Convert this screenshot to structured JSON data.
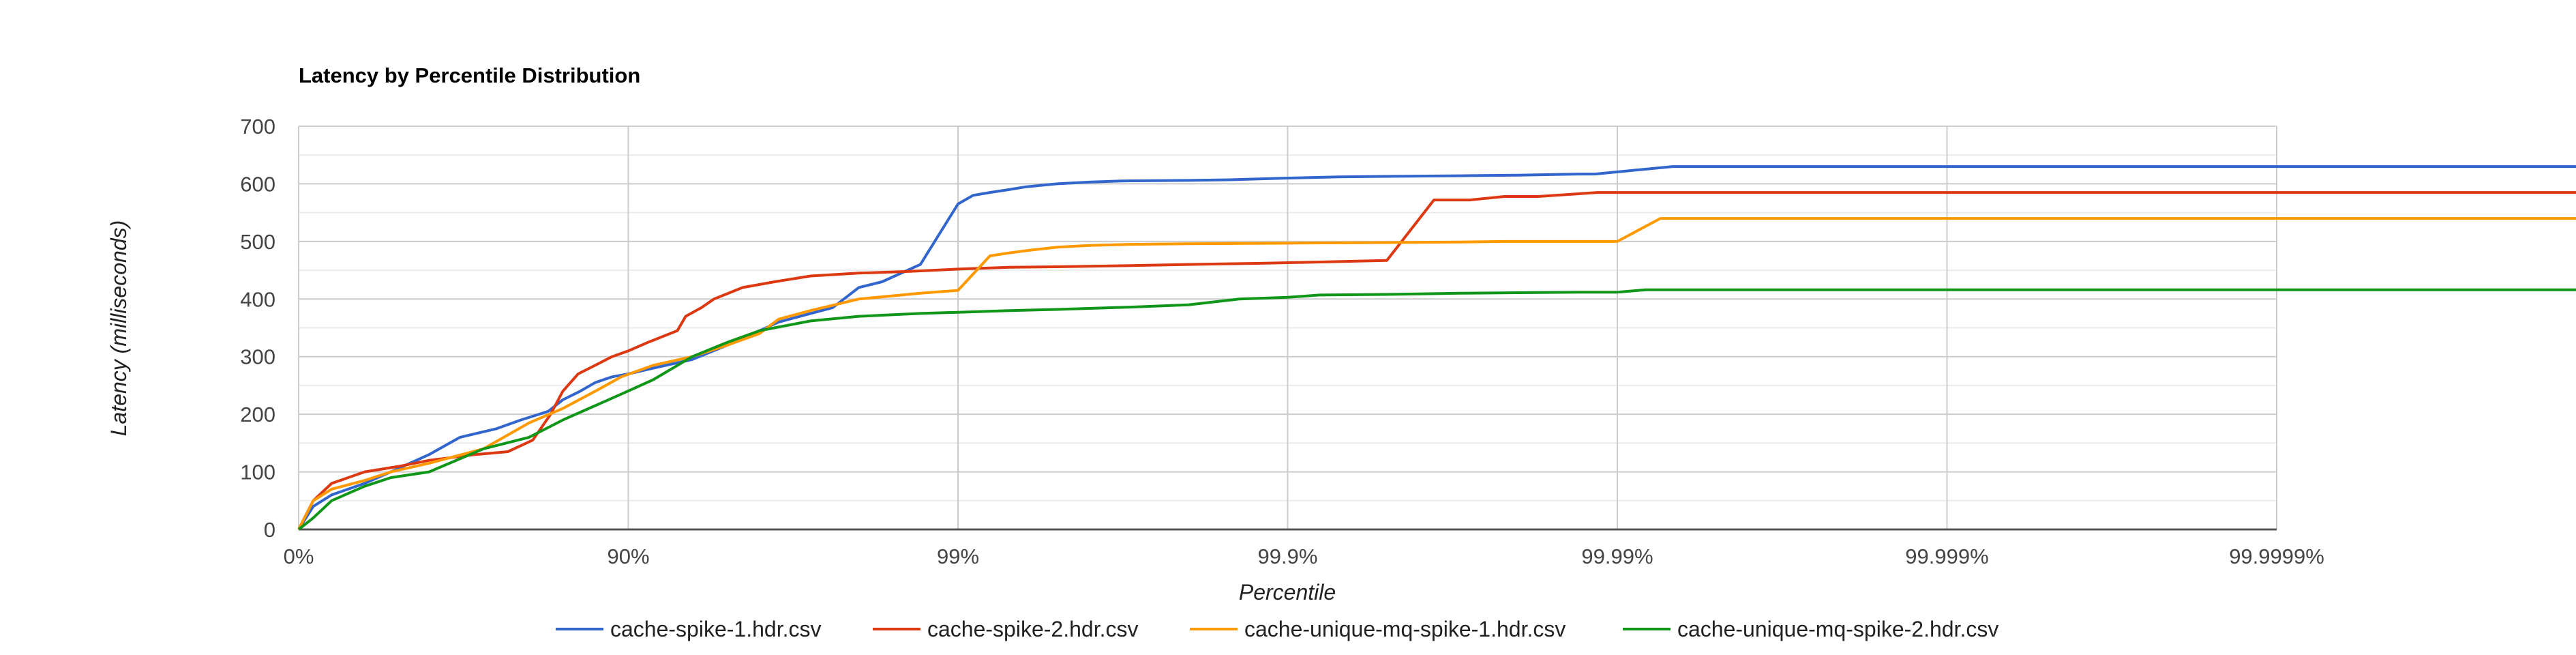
{
  "chart_data": {
    "type": "line",
    "title": "Latency by Percentile Distribution",
    "xlabel": "Percentile",
    "ylabel": "Latency (milliseconds)",
    "x_scale": "log(1/(1-percentile))",
    "x_ticks": [
      "0%",
      "90%",
      "99%",
      "99.9%",
      "99.99%",
      "99.999%",
      "99.9999%"
    ],
    "y_ticks": [
      "0",
      "100",
      "200",
      "300",
      "400",
      "500",
      "600",
      "700"
    ],
    "ylim": [
      0,
      700
    ],
    "xlim_percentile": [
      0,
      99.99995
    ],
    "grid": true,
    "legend_position": "bottom",
    "colors": [
      "#3366cc",
      "#dc3912",
      "#ff9900",
      "#109618"
    ],
    "series": [
      {
        "name": "cache-spike-1.hdr.csv",
        "x": [
          0,
          9.7,
          20.6,
          36.9,
          47.5,
          59.8,
          67.6,
          74.9,
          78.8,
          82.5,
          84.2,
          86.0,
          87.4,
          88.8,
          90.0,
          91.6,
          93.6,
          95.0,
          96.0,
          96.5,
          97.2,
          97.6,
          98.0,
          98.3,
          98.7,
          99.0,
          99.1,
          99.2,
          99.3,
          99.38,
          99.5,
          99.6,
          99.68,
          99.8,
          99.85,
          99.9,
          99.93,
          99.95,
          99.97,
          99.98,
          99.984,
          99.987,
          99.9883,
          99.9932,
          99.99995
        ],
        "y": [
          0,
          40,
          60,
          80,
          100,
          130,
          160,
          175,
          190,
          205,
          225,
          240,
          255,
          265,
          270,
          280,
          295,
          320,
          345,
          360,
          375,
          385,
          420,
          430,
          460,
          565,
          580,
          585,
          590,
          595,
          600,
          603,
          605,
          606,
          607,
          610,
          612,
          613,
          614,
          615,
          616,
          617,
          617,
          630,
          630
        ]
      },
      {
        "name": "cache-spike-2.hdr.csv",
        "x": [
          0,
          9.7,
          20.6,
          36.9,
          50.9,
          59.8,
          70.9,
          76.8,
          80.5,
          82.8,
          84.2,
          85.8,
          87.4,
          88.8,
          90.0,
          91.3,
          92.9,
          93.3,
          94.0,
          94.5,
          95.5,
          96.4,
          97.2,
          98.0,
          98.6,
          99.0,
          99.3,
          99.5,
          99.7,
          99.8,
          99.88,
          99.93,
          99.95,
          99.964,
          99.972,
          99.978,
          99.9826,
          99.9885,
          99.99995
        ],
        "y": [
          0,
          50,
          80,
          100,
          110,
          120,
          130,
          135,
          155,
          200,
          240,
          270,
          285,
          300,
          310,
          325,
          345,
          370,
          385,
          400,
          420,
          430,
          440,
          445,
          448,
          452,
          455,
          456,
          458,
          460,
          462,
          465,
          467,
          572,
          572,
          578,
          578,
          585,
          585
        ]
      },
      {
        "name": "cache-unique-mq-spike-1.hdr.csv",
        "x": [
          0,
          9.7,
          20.6,
          36.9,
          47.5,
          59.8,
          72.5,
          80.0,
          84.2,
          87.4,
          89.5,
          91.6,
          93.6,
          95.0,
          96.0,
          96.5,
          97.2,
          98.0,
          98.7,
          99.0,
          99.2,
          99.3,
          99.4,
          99.5,
          99.6,
          99.7,
          99.8,
          99.9,
          99.95,
          99.97,
          99.978,
          99.9877,
          99.99,
          99.9926,
          99.99995
        ],
        "y": [
          0,
          50,
          70,
          85,
          100,
          115,
          140,
          185,
          210,
          240,
          265,
          285,
          300,
          320,
          340,
          365,
          380,
          400,
          410,
          415,
          475,
          480,
          485,
          490,
          493,
          495,
          496,
          497,
          498,
          499,
          500,
          500,
          500,
          540,
          540
        ]
      },
      {
        "name": "cache-unique-mq-spike-2.hdr.csv",
        "x": [
          0,
          9.7,
          20.6,
          36.9,
          47.5,
          59.8,
          72.5,
          80.0,
          84.2,
          87.4,
          89.5,
          91.6,
          93.6,
          95.0,
          96.0,
          97.2,
          98.0,
          98.7,
          99.0,
          99.3,
          99.5,
          99.7,
          99.8,
          99.86,
          99.9,
          99.92,
          99.95,
          99.97,
          99.98,
          99.987,
          99.99,
          99.9918,
          99.99995
        ],
        "y": [
          0,
          20,
          50,
          75,
          90,
          100,
          140,
          160,
          190,
          215,
          235,
          260,
          300,
          325,
          345,
          362,
          370,
          375,
          377,
          380,
          382,
          386,
          390,
          400,
          403,
          407,
          408,
          410,
          411,
          412,
          412,
          416,
          416
        ]
      }
    ]
  }
}
